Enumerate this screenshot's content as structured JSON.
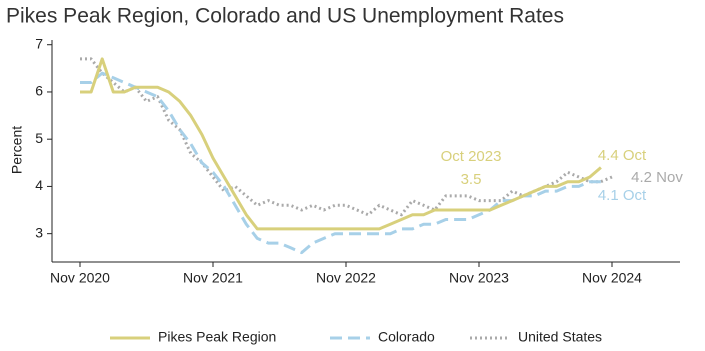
{
  "chart_data": {
    "type": "line",
    "title": "Pikes Peak Region, Colorado and US Unemployment Rates",
    "y_label": "Percent",
    "x": [
      "2020-11",
      "2020-12",
      "2021-01",
      "2021-02",
      "2021-03",
      "2021-04",
      "2021-05",
      "2021-06",
      "2021-07",
      "2021-08",
      "2021-09",
      "2021-10",
      "2021-11",
      "2021-12",
      "2022-01",
      "2022-02",
      "2022-03",
      "2022-04",
      "2022-05",
      "2022-06",
      "2022-07",
      "2022-08",
      "2022-09",
      "2022-10",
      "2022-11",
      "2022-12",
      "2023-01",
      "2023-02",
      "2023-03",
      "2023-04",
      "2023-05",
      "2023-06",
      "2023-07",
      "2023-08",
      "2023-09",
      "2023-10",
      "2023-11",
      "2023-12",
      "2024-01",
      "2024-02",
      "2024-03",
      "2024-04",
      "2024-05",
      "2024-06",
      "2024-07",
      "2024-08",
      "2024-09",
      "2024-10",
      "2024-11"
    ],
    "xticks": [
      {
        "value": "2020-11",
        "label": "Nov 2020"
      },
      {
        "value": "2021-11",
        "label": "Nov 2021"
      },
      {
        "value": "2022-11",
        "label": "Nov 2022"
      },
      {
        "value": "2023-11",
        "label": "Nov 2023"
      },
      {
        "value": "2024-11",
        "label": "Nov 2024"
      }
    ],
    "ylim": [
      2.4,
      7.1
    ],
    "yticks": [
      3,
      4,
      5,
      6,
      7
    ],
    "series": [
      {
        "name": "Pikes Peak Region",
        "color": "#d8d07c",
        "style": "solid",
        "values": [
          6.0,
          6.0,
          6.7,
          6.0,
          6.0,
          6.1,
          6.1,
          6.1,
          6.0,
          5.8,
          5.5,
          5.1,
          4.6,
          4.2,
          3.8,
          3.4,
          3.1,
          3.1,
          3.1,
          3.1,
          3.1,
          3.1,
          3.1,
          3.1,
          3.1,
          3.1,
          3.1,
          3.1,
          3.2,
          3.3,
          3.4,
          3.4,
          3.5,
          3.5,
          3.5,
          3.5,
          3.5,
          3.5,
          3.6,
          3.7,
          3.8,
          3.9,
          4.0,
          4.0,
          4.1,
          4.1,
          4.2,
          4.4,
          null
        ]
      },
      {
        "name": "Colorado",
        "color": "#a7d0e8",
        "style": "dashed",
        "values": [
          6.2,
          6.2,
          6.4,
          6.3,
          6.2,
          6.1,
          6.0,
          5.9,
          5.6,
          5.2,
          4.9,
          4.5,
          4.3,
          4.0,
          3.6,
          3.2,
          2.9,
          2.8,
          2.8,
          2.7,
          2.6,
          2.8,
          2.9,
          3.0,
          3.0,
          3.0,
          3.0,
          3.0,
          3.0,
          3.1,
          3.1,
          3.2,
          3.2,
          3.3,
          3.3,
          3.3,
          3.4,
          3.5,
          3.7,
          3.7,
          3.8,
          3.8,
          3.9,
          3.9,
          4.0,
          4.0,
          4.1,
          4.1,
          null
        ]
      },
      {
        "name": "United States",
        "color": "#aaaaaa",
        "style": "dotted",
        "values": [
          6.7,
          6.7,
          6.4,
          6.2,
          6.0,
          6.1,
          5.8,
          5.9,
          5.4,
          5.2,
          4.7,
          4.5,
          4.2,
          3.9,
          4.0,
          3.8,
          3.6,
          3.7,
          3.6,
          3.6,
          3.5,
          3.6,
          3.5,
          3.6,
          3.6,
          3.5,
          3.4,
          3.6,
          3.5,
          3.4,
          3.7,
          3.6,
          3.5,
          3.8,
          3.8,
          3.8,
          3.7,
          3.7,
          3.7,
          3.9,
          3.8,
          3.9,
          4.0,
          4.1,
          4.3,
          4.2,
          4.1,
          4.1,
          4.2
        ]
      }
    ],
    "annotations": [
      {
        "text": "Oct 2023",
        "color": "#d8d07c"
      },
      {
        "text": "3.5",
        "color": "#d8d07c"
      },
      {
        "text": "4.4 Oct",
        "color": "#d8d07c"
      },
      {
        "text": "4.2 Nov",
        "color": "#aaaaaa"
      },
      {
        "text": "4.1 Oct",
        "color": "#a7d0e8"
      }
    ]
  }
}
